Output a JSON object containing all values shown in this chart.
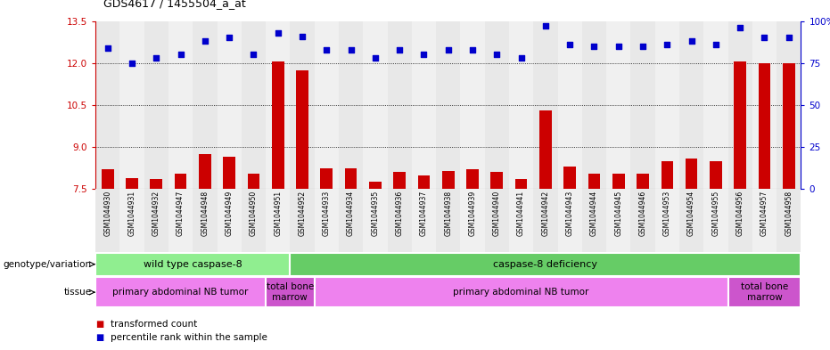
{
  "title": "GDS4617 / 1455504_a_at",
  "samples": [
    "GSM1044930",
    "GSM1044931",
    "GSM1044932",
    "GSM1044947",
    "GSM1044948",
    "GSM1044949",
    "GSM1044950",
    "GSM1044951",
    "GSM1044952",
    "GSM1044933",
    "GSM1044934",
    "GSM1044935",
    "GSM1044936",
    "GSM1044937",
    "GSM1044938",
    "GSM1044939",
    "GSM1044940",
    "GSM1044941",
    "GSM1044942",
    "GSM1044943",
    "GSM1044944",
    "GSM1044945",
    "GSM1044946",
    "GSM1044953",
    "GSM1044954",
    "GSM1044955",
    "GSM1044956",
    "GSM1044957",
    "GSM1044958"
  ],
  "bar_values": [
    8.2,
    7.9,
    7.85,
    8.05,
    8.75,
    8.65,
    8.05,
    12.05,
    11.75,
    8.25,
    8.25,
    7.75,
    8.1,
    8.0,
    8.15,
    8.2,
    8.1,
    7.85,
    10.3,
    8.3,
    8.05,
    8.05,
    8.05,
    8.5,
    8.6,
    8.5,
    12.05,
    12.0,
    12.0
  ],
  "percentile_values": [
    84,
    75,
    78,
    80,
    88,
    90,
    80,
    93,
    91,
    83,
    83,
    78,
    83,
    80,
    83,
    83,
    80,
    78,
    97,
    86,
    85,
    85,
    85,
    86,
    88,
    86,
    96,
    90,
    90
  ],
  "ylim_left": [
    7.5,
    13.5
  ],
  "ylim_right": [
    0,
    100
  ],
  "yticks_left": [
    7.5,
    9.0,
    10.5,
    12.0,
    13.5
  ],
  "yticks_right": [
    0,
    25,
    50,
    75,
    100
  ],
  "bar_color": "#cc0000",
  "dot_color": "#0000cc",
  "bar_bottom": 7.5,
  "genotype_groups": [
    {
      "label": "wild type caspase-8",
      "start": 0,
      "end": 8,
      "color": "#90ee90"
    },
    {
      "label": "caspase-8 deficiency",
      "start": 8,
      "end": 29,
      "color": "#66cc66"
    }
  ],
  "tissue_groups": [
    {
      "label": "primary abdominal NB tumor",
      "start": 0,
      "end": 7,
      "color": "#ee82ee"
    },
    {
      "label": "total bone\nmarrow",
      "start": 7,
      "end": 9,
      "color": "#cc55cc"
    },
    {
      "label": "primary abdominal NB tumor",
      "start": 9,
      "end": 26,
      "color": "#ee82ee"
    },
    {
      "label": "total bone\nmarrow",
      "start": 26,
      "end": 29,
      "color": "#cc55cc"
    }
  ],
  "legend_items": [
    {
      "color": "#cc0000",
      "label": "transformed count"
    },
    {
      "color": "#0000cc",
      "label": "percentile rank within the sample"
    }
  ],
  "background_color": "#ffffff",
  "genotype_label": "genotype/variation",
  "tissue_label": "tissue",
  "col_bg_even": "#e8e8e8",
  "col_bg_odd": "#f0f0f0"
}
